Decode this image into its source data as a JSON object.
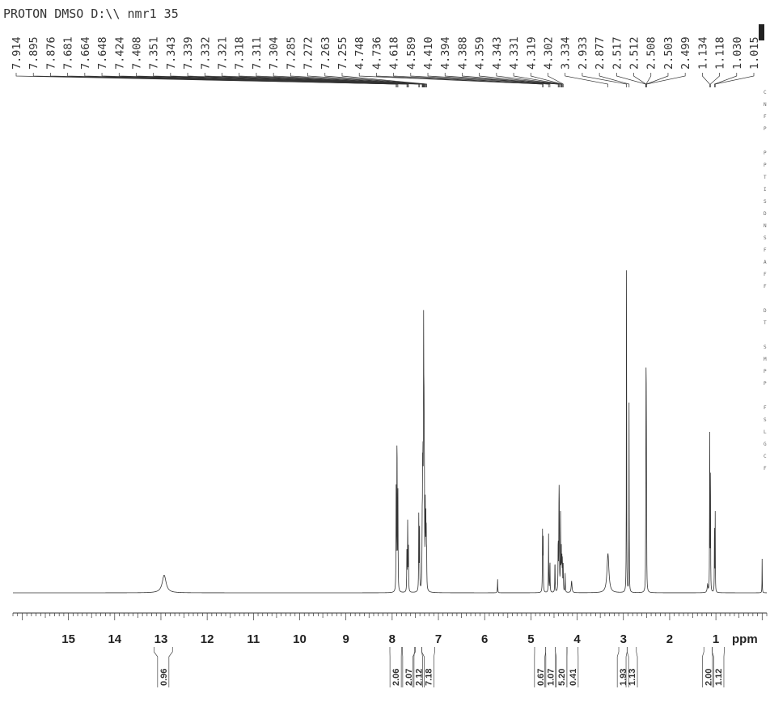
{
  "chart_data": {
    "type": "line",
    "title": "PROTON DMSO D:\\\\ nmr1 35",
    "xlabel": "ppm",
    "xlim": [
      16.2,
      -0.1
    ],
    "x_reversed": true,
    "x_ticks": [
      15,
      14,
      13,
      12,
      11,
      10,
      9,
      8,
      7,
      6,
      5,
      4,
      3,
      2,
      1
    ],
    "x_tick_labels": [
      "15",
      "14",
      "13",
      "12",
      "11",
      "10",
      "9",
      "8",
      "7",
      "6",
      "5",
      "4",
      "3",
      "2",
      "1"
    ],
    "peak_labels": [
      "7.914",
      "7.895",
      "7.876",
      "7.681",
      "7.664",
      "7.648",
      "7.424",
      "7.408",
      "7.351",
      "7.343",
      "7.339",
      "7.332",
      "7.321",
      "7.318",
      "7.311",
      "7.304",
      "7.285",
      "7.272",
      "7.263",
      "7.255",
      "4.748",
      "4.736",
      "4.618",
      "4.589",
      "4.410",
      "4.394",
      "4.388",
      "4.359",
      "4.343",
      "4.331",
      "4.319",
      "4.302",
      "3.334",
      "2.933",
      "2.877",
      "2.517",
      "2.512",
      "2.508",
      "2.503",
      "2.499",
      "1.134",
      "1.118",
      "1.030",
      "1.015"
    ],
    "peaks": [
      {
        "ppm": 12.93,
        "height": 0.045,
        "width": 0.05
      },
      {
        "ppm": 7.914,
        "height": 0.26,
        "width": 0.004
      },
      {
        "ppm": 7.895,
        "height": 0.44,
        "width": 0.004
      },
      {
        "ppm": 7.876,
        "height": 0.26,
        "width": 0.004
      },
      {
        "ppm": 7.681,
        "height": 0.12,
        "width": 0.004
      },
      {
        "ppm": 7.664,
        "height": 0.19,
        "width": 0.004
      },
      {
        "ppm": 7.648,
        "height": 0.11,
        "width": 0.004
      },
      {
        "ppm": 7.424,
        "height": 0.2,
        "width": 0.004
      },
      {
        "ppm": 7.408,
        "height": 0.16,
        "width": 0.004
      },
      {
        "ppm": 7.351,
        "height": 0.14,
        "width": 0.004
      },
      {
        "ppm": 7.343,
        "height": 0.16,
        "width": 0.004
      },
      {
        "ppm": 7.339,
        "height": 0.18,
        "width": 0.004
      },
      {
        "ppm": 7.332,
        "height": 0.24,
        "width": 0.004
      },
      {
        "ppm": 7.321,
        "height": 0.36,
        "width": 0.004
      },
      {
        "ppm": 7.318,
        "height": 0.34,
        "width": 0.004
      },
      {
        "ppm": 7.311,
        "height": 0.3,
        "width": 0.004
      },
      {
        "ppm": 7.304,
        "height": 0.28,
        "width": 0.004
      },
      {
        "ppm": 7.285,
        "height": 0.2,
        "width": 0.004
      },
      {
        "ppm": 7.272,
        "height": 0.16,
        "width": 0.004
      },
      {
        "ppm": 7.263,
        "height": 0.12,
        "width": 0.004
      },
      {
        "ppm": 7.255,
        "height": 0.08,
        "width": 0.004
      },
      {
        "ppm": 5.72,
        "height": 0.035,
        "width": 0.004
      },
      {
        "ppm": 4.748,
        "height": 0.16,
        "width": 0.004
      },
      {
        "ppm": 4.736,
        "height": 0.13,
        "width": 0.004
      },
      {
        "ppm": 4.618,
        "height": 0.15,
        "width": 0.004
      },
      {
        "ppm": 4.589,
        "height": 0.09,
        "width": 0.004
      },
      {
        "ppm": 4.48,
        "height": 0.09,
        "width": 0.004
      },
      {
        "ppm": 4.41,
        "height": 0.14,
        "width": 0.004
      },
      {
        "ppm": 4.394,
        "height": 0.16,
        "width": 0.004
      },
      {
        "ppm": 4.388,
        "height": 0.24,
        "width": 0.004
      },
      {
        "ppm": 4.359,
        "height": 0.2,
        "width": 0.004
      },
      {
        "ppm": 4.343,
        "height": 0.1,
        "width": 0.004
      },
      {
        "ppm": 4.331,
        "height": 0.09,
        "width": 0.004
      },
      {
        "ppm": 4.319,
        "height": 0.08,
        "width": 0.004
      },
      {
        "ppm": 4.302,
        "height": 0.07,
        "width": 0.004
      },
      {
        "ppm": 4.26,
        "height": 0.05,
        "width": 0.004
      },
      {
        "ppm": 4.12,
        "height": 0.03,
        "width": 0.01
      },
      {
        "ppm": 3.334,
        "height": 0.1,
        "width": 0.025
      },
      {
        "ppm": 2.933,
        "height": 1.0,
        "width": 0.003
      },
      {
        "ppm": 2.877,
        "height": 0.5,
        "width": 0.003
      },
      {
        "ppm": 2.517,
        "height": 0.12,
        "width": 0.003
      },
      {
        "ppm": 2.512,
        "height": 0.3,
        "width": 0.003
      },
      {
        "ppm": 2.508,
        "height": 0.44,
        "width": 0.003
      },
      {
        "ppm": 2.503,
        "height": 0.3,
        "width": 0.003
      },
      {
        "ppm": 2.499,
        "height": 0.12,
        "width": 0.003
      },
      {
        "ppm": 1.18,
        "height": 0.02,
        "width": 0.01
      },
      {
        "ppm": 1.134,
        "height": 0.44,
        "width": 0.003
      },
      {
        "ppm": 1.118,
        "height": 0.4,
        "width": 0.003
      },
      {
        "ppm": 1.03,
        "height": 0.22,
        "width": 0.003
      },
      {
        "ppm": 1.015,
        "height": 0.2,
        "width": 0.003
      },
      {
        "ppm": 0.0,
        "height": 0.09,
        "width": 0.003
      }
    ],
    "integrals": [
      {
        "label": "0.96",
        "from": 13.15,
        "to": 12.75
      },
      {
        "label": "2.06",
        "from": 8.05,
        "to": 7.8
      },
      {
        "label": "2.07",
        "from": 7.78,
        "to": 7.52
      },
      {
        "label": "2.12",
        "from": 7.5,
        "to": 7.36
      },
      {
        "label": "7.18",
        "from": 7.36,
        "to": 7.08
      },
      {
        "label": "0.67",
        "from": 4.92,
        "to": 4.68
      },
      {
        "label": "1.07",
        "from": 4.68,
        "to": 4.47
      },
      {
        "label": "5.20",
        "from": 4.47,
        "to": 4.22
      },
      {
        "label": "0.41",
        "from": 4.22,
        "to": 3.98
      },
      {
        "label": "1.93",
        "from": 3.1,
        "to": 2.92
      },
      {
        "label": "1.13",
        "from": 2.92,
        "to": 2.72
      },
      {
        "label": "2.00",
        "from": 1.26,
        "to": 1.08
      },
      {
        "label": "1.12",
        "from": 1.08,
        "to": 0.82
      }
    ],
    "grid": false,
    "legend": "none"
  },
  "side_panel_text": [
    "C",
    "N",
    "F",
    "P",
    "",
    "P",
    "P",
    "T",
    "I",
    "S",
    "D",
    "N",
    "S",
    "F",
    "A",
    "F",
    "F",
    "",
    "D",
    "T",
    "",
    "S",
    "M",
    "P",
    "P",
    "",
    "F",
    "S",
    "L",
    "G",
    "C",
    "F"
  ]
}
